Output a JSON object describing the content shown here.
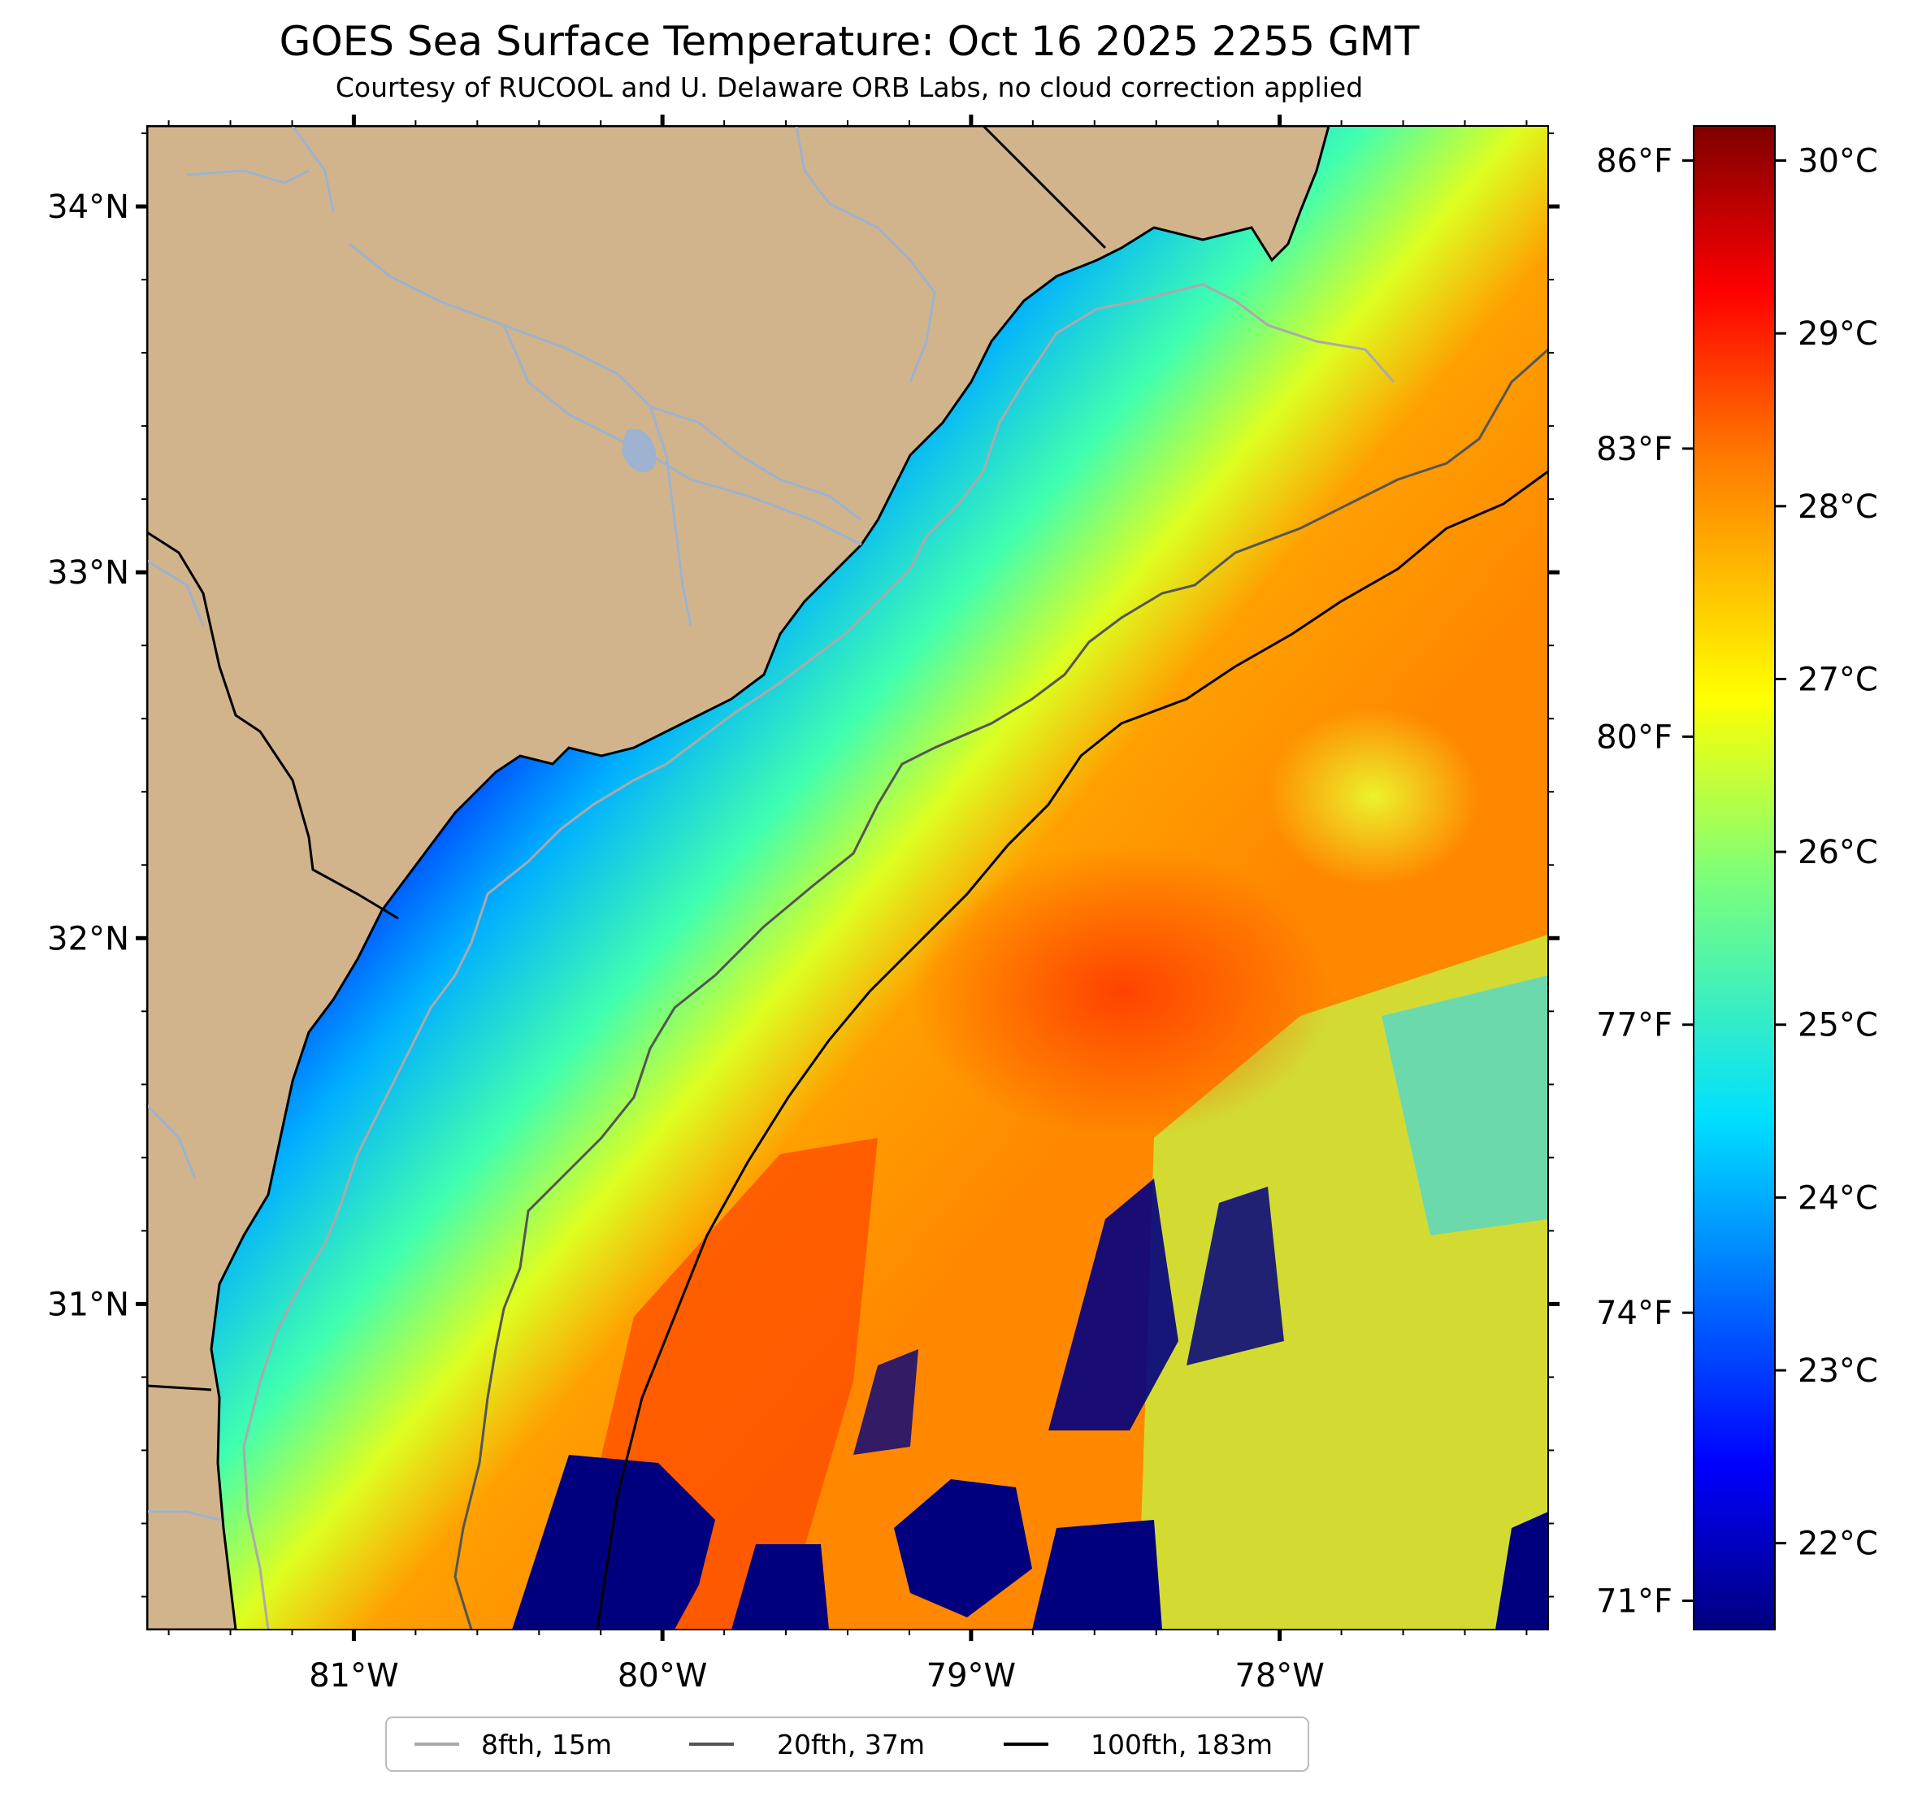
{
  "title": "GOES Sea Surface Temperature: Oct 16 2025 2255 GMT",
  "subtitle": "Courtesy of RUCOOL and U. Delaware ORB Labs, no cloud correction applied",
  "map": {
    "lon_range": [
      -81.67,
      -77.13
    ],
    "lat_range": [
      30.11,
      34.22
    ],
    "lat_ticks": [
      {
        "value": 34,
        "label": "34°N"
      },
      {
        "value": 33,
        "label": "33°N"
      },
      {
        "value": 32,
        "label": "32°N"
      },
      {
        "value": 31,
        "label": "31°N"
      }
    ],
    "lon_ticks": [
      {
        "value": -81,
        "label": "81°W"
      },
      {
        "value": -80,
        "label": "80°W"
      },
      {
        "value": -79,
        "label": "79°W"
      },
      {
        "value": -78,
        "label": "78°W"
      }
    ],
    "land_color": "#d2b48c",
    "river_color": "#9db3cf"
  },
  "colorbar": {
    "range_c": [
      21.5,
      30.2
    ],
    "colormap": "jet",
    "celsius_ticks": [
      {
        "value": 30,
        "label": "30°C"
      },
      {
        "value": 29,
        "label": "29°C"
      },
      {
        "value": 28,
        "label": "28°C"
      },
      {
        "value": 27,
        "label": "27°C"
      },
      {
        "value": 26,
        "label": "26°C"
      },
      {
        "value": 25,
        "label": "25°C"
      },
      {
        "value": 24,
        "label": "24°C"
      },
      {
        "value": 23,
        "label": "23°C"
      },
      {
        "value": 22,
        "label": "22°C"
      }
    ],
    "fahrenheit_ticks": [
      {
        "value": 86,
        "label": "86°F"
      },
      {
        "value": 83,
        "label": "83°F"
      },
      {
        "value": 80,
        "label": "80°F"
      },
      {
        "value": 77,
        "label": "77°F"
      },
      {
        "value": 74,
        "label": "74°F"
      },
      {
        "value": 71,
        "label": "71°F"
      }
    ]
  },
  "legend": {
    "items": [
      {
        "label": "8fth, 15m",
        "color": "#aaaaaa"
      },
      {
        "label": "20fth, 37m",
        "color": "#555555"
      },
      {
        "label": "100fth, 183m",
        "color": "#000000"
      }
    ]
  }
}
